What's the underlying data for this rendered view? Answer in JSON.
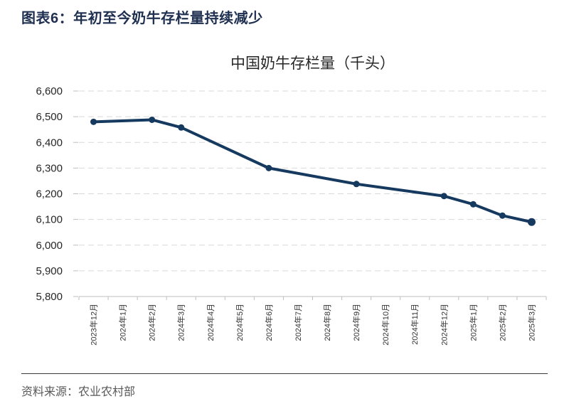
{
  "header": {
    "title": "图表6：年初至今奶牛存栏量持续减少"
  },
  "footer": {
    "source": "资料来源：农业农村部"
  },
  "colors": {
    "line": "#163A5F",
    "grid": "#D9D9D9",
    "axis": "#BFBFBF",
    "tick_text": "#262626",
    "x_tick_text": "#333333",
    "chart_title_text": "#262626",
    "figure_title_text": "#1E2F50",
    "source_text": "#595959"
  },
  "chart_data": {
    "type": "line",
    "title": "中国奶牛存栏量（千头）",
    "series_name": "中国奶牛存栏量",
    "categories": [
      "2023年12月",
      "2024年1月",
      "2024年2月",
      "2024年3月",
      "2024年4月",
      "2024年5月",
      "2024年6月",
      "2024年7月",
      "2024年8月",
      "2024年9月",
      "2024年10月",
      "2024年11月",
      "2024年12月",
      "2025年1月",
      "2025年2月",
      "2025年3月"
    ],
    "values": [
      6480,
      null,
      6488,
      6458,
      null,
      null,
      6300,
      null,
      null,
      6238,
      null,
      null,
      6191,
      6159,
      6115,
      6090
    ],
    "xlabel": "",
    "ylabel": "",
    "ylim": [
      5800,
      6600
    ],
    "ytick_interval": 100,
    "grid": "horizontal-dashed",
    "legend": "none"
  }
}
